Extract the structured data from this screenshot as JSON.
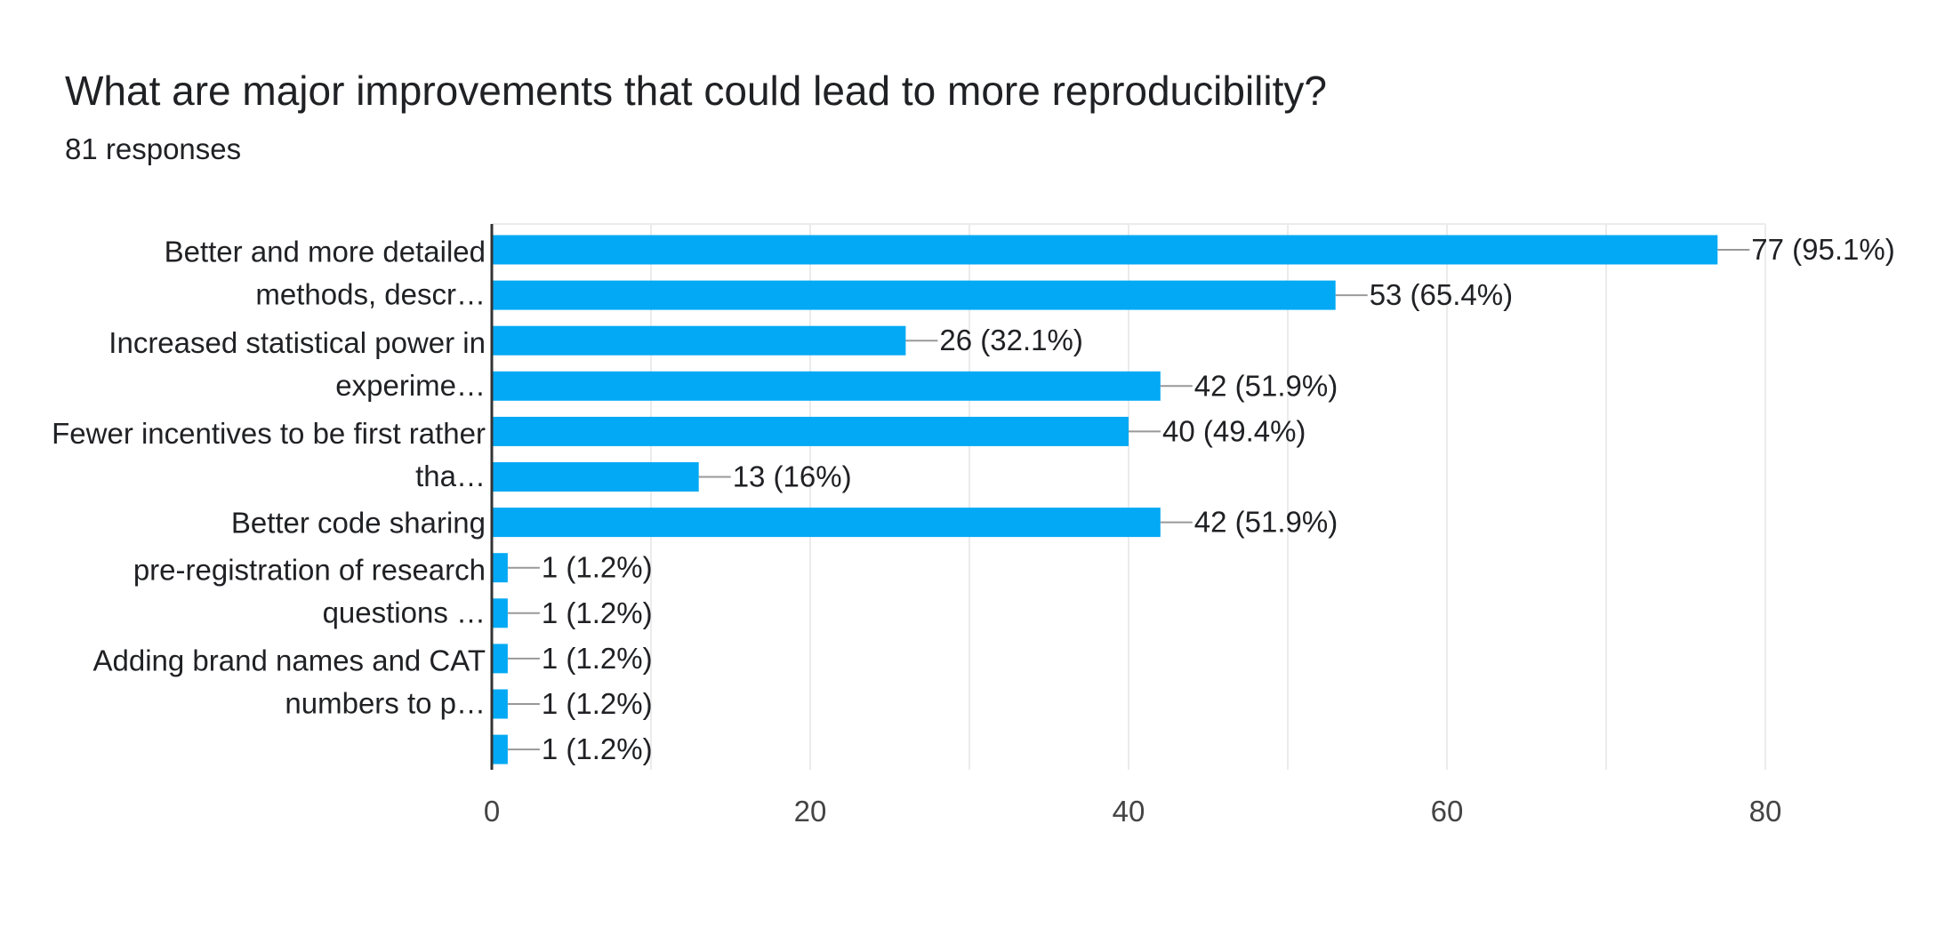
{
  "title": "What are major improvements that could lead to more reproducibility?",
  "subtitle": "81 responses",
  "colors": {
    "bar": "#03a9f4",
    "grid": "#ebebeb",
    "axis": "#333333",
    "leader": "#999999"
  },
  "chart_data": {
    "type": "bar",
    "orientation": "horizontal",
    "title": "What are major improvements that could lead to more reproducibility?",
    "subtitle": "81 responses",
    "xlabel": "",
    "ylabel": "",
    "xlim": [
      0,
      80
    ],
    "x_ticks": [
      0,
      20,
      40,
      60,
      80
    ],
    "grid": true,
    "category_labels": [
      {
        "lines": [
          "Better and more detailed",
          "methods, descr…"
        ],
        "bars": [
          0,
          1
        ]
      },
      {
        "lines": [
          "Increased statistical power in",
          "experime…"
        ],
        "bars": [
          2,
          3
        ]
      },
      {
        "lines": [
          "Fewer incentives to be first rather",
          "tha…"
        ],
        "bars": [
          4,
          5
        ]
      },
      {
        "lines": [
          "Better code sharing"
        ],
        "bars": [
          6,
          6
        ]
      },
      {
        "lines": [
          "pre-registration of research",
          "questions …"
        ],
        "bars": [
          7,
          8
        ]
      },
      {
        "lines": [
          "Adding brand names and CAT",
          "numbers to p…"
        ],
        "bars": [
          9,
          10
        ]
      }
    ],
    "values": [
      77,
      53,
      26,
      42,
      40,
      13,
      42,
      1,
      1,
      1,
      1,
      1
    ],
    "value_labels": [
      "77 (95.1%)",
      "53 (65.4%)",
      "26 (32.1%)",
      "42 (51.9%)",
      "40 (49.4%)",
      "13 (16%)",
      "42 (51.9%)",
      "1 (1.2%)",
      "1 (1.2%)",
      "1 (1.2%)",
      "1 (1.2%)",
      "1 (1.2%)"
    ]
  }
}
